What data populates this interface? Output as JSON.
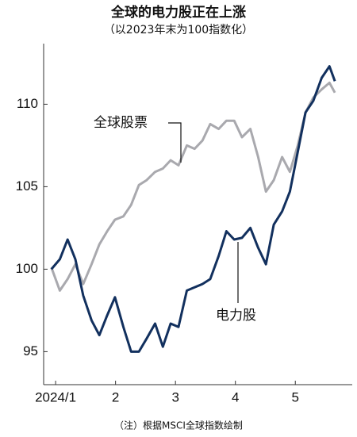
{
  "chart_data": {
    "type": "line",
    "title": "全球的电力股正在上涨",
    "subtitle": "（以2023年末为100指数化）",
    "note": "（注）根据MSCI全球指数绘制",
    "x": [
      0.93,
      1.07,
      1.2,
      1.33,
      1.46,
      1.6,
      1.73,
      1.86,
      1.99,
      2.13,
      2.26,
      2.39,
      2.52,
      2.66,
      2.79,
      2.92,
      3.05,
      3.19,
      3.32,
      3.45,
      3.58,
      3.72,
      3.85,
      3.98,
      4.11,
      4.25,
      4.38,
      4.51,
      4.64,
      4.78,
      4.91,
      5.04,
      5.17,
      5.3,
      5.44,
      5.57,
      5.66
    ],
    "series": [
      {
        "name": "全球股票",
        "color": "#a9a9ae",
        "values": [
          100.1,
          98.7,
          99.4,
          100.3,
          99.1,
          100.3,
          101.5,
          102.3,
          103.0,
          103.2,
          103.9,
          105.1,
          105.4,
          105.9,
          106.1,
          106.6,
          106.3,
          107.5,
          107.3,
          107.8,
          108.8,
          108.5,
          109.0,
          109.0,
          108.0,
          108.5,
          106.8,
          104.7,
          105.4,
          106.8,
          105.9,
          107.5,
          109.5,
          110.4,
          110.9,
          111.3,
          110.7
        ]
      },
      {
        "name": "电力股",
        "color": "#12305e",
        "values": [
          100.0,
          100.6,
          101.8,
          100.6,
          98.4,
          96.9,
          96.0,
          97.2,
          98.3,
          96.5,
          95.0,
          95.0,
          95.8,
          96.7,
          95.3,
          96.7,
          96.5,
          98.7,
          98.9,
          99.1,
          99.4,
          100.8,
          102.3,
          101.8,
          101.9,
          102.5,
          101.3,
          100.3,
          102.7,
          103.5,
          104.7,
          107.1,
          109.5,
          110.2,
          111.6,
          112.3,
          111.4
        ]
      }
    ],
    "xlim": [
      0.8,
      5.95
    ],
    "xticks": [
      {
        "value": 1,
        "label": "2024/1"
      },
      2,
      3,
      4,
      5
    ],
    "ylim": [
      93,
      113.5
    ],
    "yticks": [
      95,
      100,
      105,
      110
    ],
    "grid": false
  }
}
